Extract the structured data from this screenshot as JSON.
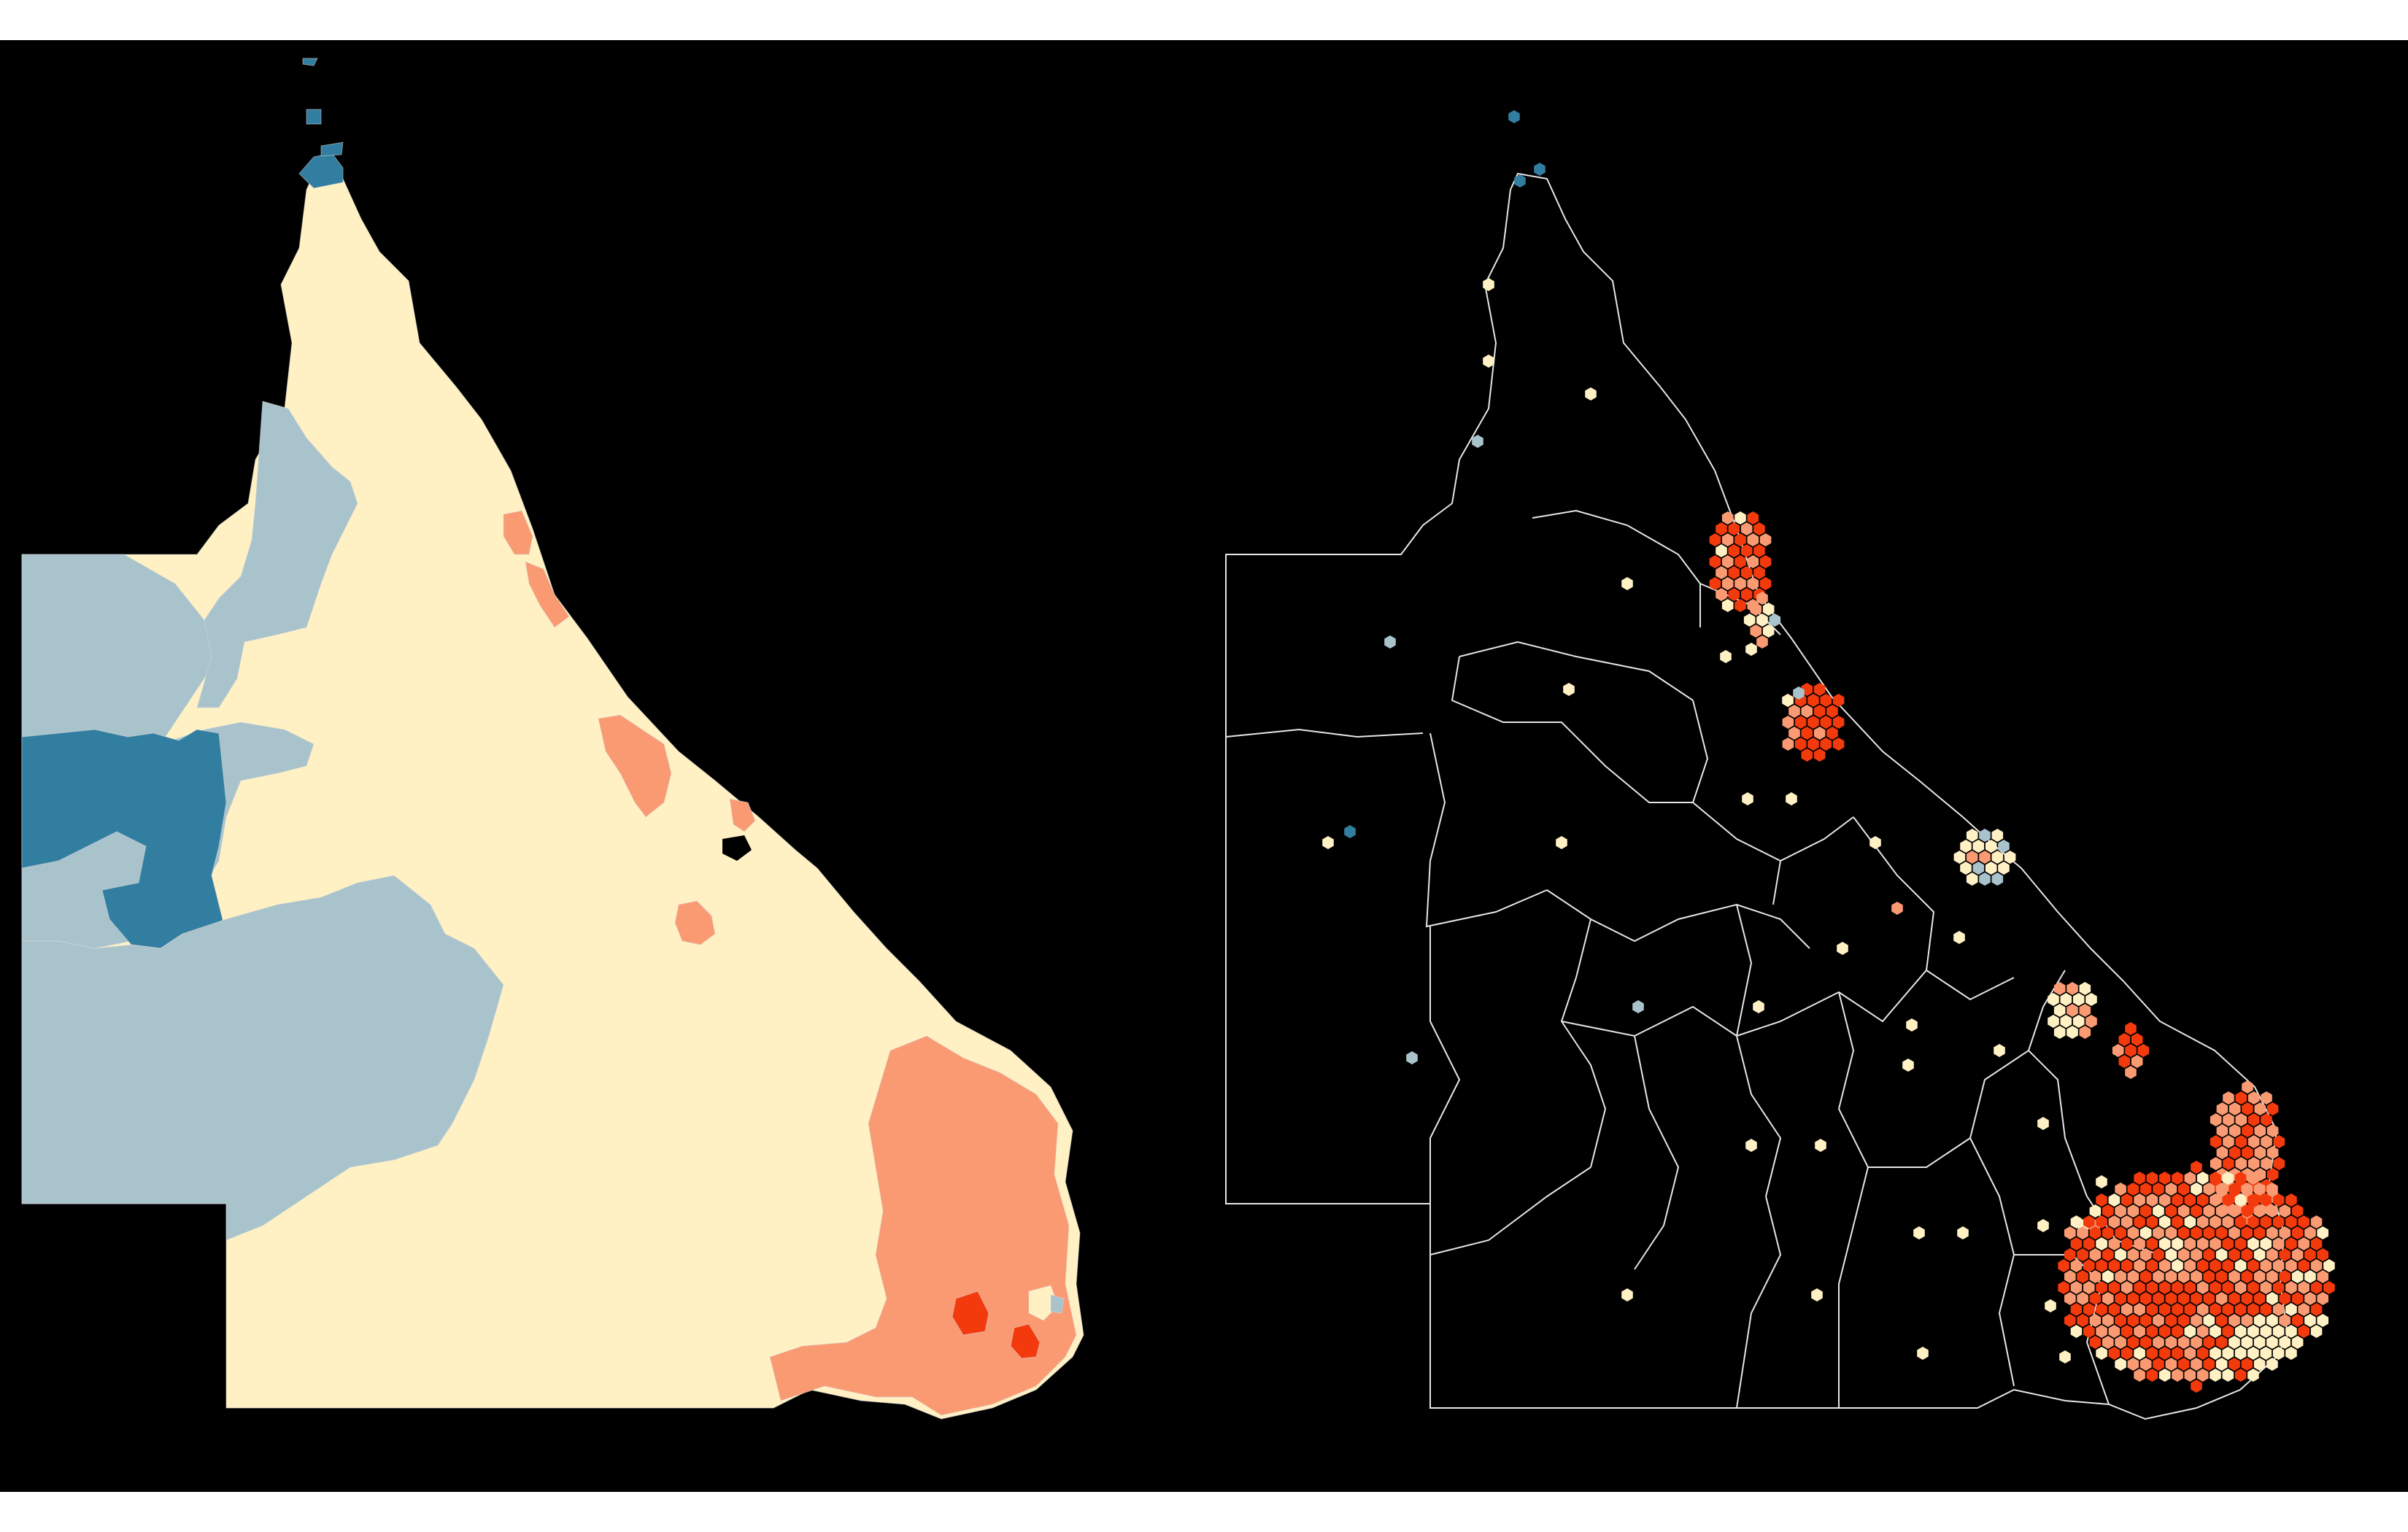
{
  "figure": {
    "panels": [
      {
        "id": "choropleth-map",
        "style": "filled regions",
        "background": "#000000",
        "colors": {
          "very_low": "#327ea0",
          "low": "#a9c3cc",
          "neutral": "#fff1c4",
          "high": "#fa9a73",
          "very_high": "#f23a0d"
        }
      },
      {
        "id": "hexbin-map",
        "style": "hexagon cartogram over region boundaries",
        "background": "#000000",
        "boundary_color": "#e6e6e6",
        "colors": {
          "very_low": "#327ea0",
          "low": "#a9c3cc",
          "neutral": "#fff1c4",
          "high": "#fa9a73",
          "very_high": "#f23a0d"
        }
      }
    ]
  }
}
